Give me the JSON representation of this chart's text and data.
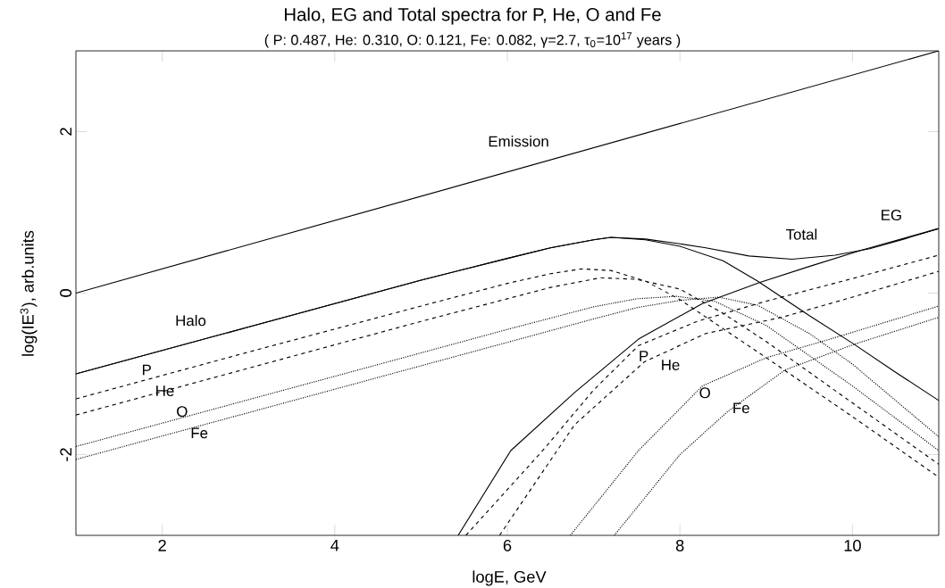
{
  "chart_data": {
    "type": "line",
    "title": "Halo, EG and Total spectra for P,  He, O and Fe",
    "subtitle": "( P: 0.487, He: 0.310, O: 0.121, Fe: 0.082, γ=2.7, τ$_{0}$=10$^{17}$ years )",
    "xlabel": "logE, GeV",
    "ylabel": "log(IE$^{3}$), arb.units",
    "xlim": [
      1,
      11
    ],
    "ylim": [
      -3,
      3
    ],
    "xticks": [
      2,
      4,
      6,
      8,
      10
    ],
    "yticks": [
      -2,
      0,
      2
    ],
    "grid": false,
    "series": [
      {
        "name": "Emission",
        "color": "#000000",
        "line_style": "solid",
        "x": [
          1,
          11
        ],
        "values": [
          0,
          3
        ]
      },
      {
        "name": "Halo",
        "color": "#000000",
        "line_style": "solid",
        "x": [
          1,
          3,
          5,
          6,
          6.5,
          7,
          7.2,
          7.6,
          8,
          8.5,
          8.9,
          9.5,
          10,
          10.5,
          11
        ],
        "values": [
          -1.0,
          -0.42,
          0.16,
          0.43,
          0.56,
          0.66,
          0.69,
          0.66,
          0.58,
          0.4,
          0.15,
          -0.28,
          -0.62,
          -0.98,
          -1.33
        ]
      },
      {
        "name": "Total",
        "color": "#000000",
        "line_style": "solid",
        "x": [
          1,
          3,
          5,
          6,
          6.5,
          7,
          7.2,
          7.6,
          8,
          8.3,
          8.8,
          9.3,
          9.8,
          10.2,
          10.6,
          11
        ],
        "values": [
          -1.0,
          -0.42,
          0.16,
          0.43,
          0.56,
          0.66,
          0.69,
          0.67,
          0.61,
          0.56,
          0.46,
          0.42,
          0.47,
          0.55,
          0.67,
          0.8
        ]
      },
      {
        "name": "EG",
        "color": "#000000",
        "line_style": "solid",
        "x": [
          5.43,
          6.04,
          6.78,
          7.52,
          8.26,
          8.92,
          9.5,
          10.1,
          11
        ],
        "values": [
          -3,
          -1.95,
          -1.23,
          -0.57,
          -0.13,
          0.13,
          0.33,
          0.53,
          0.8
        ]
      },
      {
        "name": "P",
        "color": "#000000",
        "line_style": "dashed",
        "x": [
          1,
          3,
          5,
          6,
          6.5,
          6.86,
          7.2,
          7.6,
          8,
          9,
          10,
          11
        ],
        "values": [
          -1.31,
          -0.73,
          -0.16,
          0.12,
          0.24,
          0.3,
          0.28,
          0.15,
          -0.08,
          -0.8,
          -1.53,
          -2.28
        ]
      },
      {
        "name": "He",
        "color": "#000000",
        "line_style": "dashed",
        "x": [
          1,
          3,
          5,
          6,
          6.5,
          7.08,
          7.5,
          8,
          8.5,
          9,
          10,
          11
        ],
        "values": [
          -1.51,
          -0.93,
          -0.35,
          -0.07,
          0.07,
          0.19,
          0.17,
          0.05,
          -0.25,
          -0.6,
          -1.36,
          -2.12
        ]
      },
      {
        "name": "O",
        "color": "#000000",
        "line_style": "dotted",
        "x": [
          1,
          3,
          5,
          6,
          7,
          7.5,
          7.96,
          8.4,
          9,
          10,
          11
        ],
        "values": [
          -1.9,
          -1.32,
          -0.74,
          -0.45,
          -0.17,
          -0.07,
          -0.04,
          -0.1,
          -0.4,
          -1.15,
          -1.95
        ]
      },
      {
        "name": "Fe",
        "color": "#000000",
        "line_style": "dotted",
        "x": [
          1,
          3,
          5,
          6,
          7,
          7.5,
          8,
          8.45,
          8.9,
          9.5,
          10,
          11
        ],
        "values": [
          -2.06,
          -1.48,
          -0.9,
          -0.61,
          -0.32,
          -0.18,
          -0.09,
          -0.05,
          -0.15,
          -0.5,
          -0.88,
          -1.78
        ]
      },
      {
        "name": "P",
        "color": "#000000",
        "line_style": "dashed",
        "x": [
          5.52,
          6.41,
          7,
          7.52,
          8.2,
          9,
          10,
          11
        ],
        "values": [
          -3,
          -1.95,
          -1.2,
          -0.65,
          -0.35,
          -0.1,
          0.18,
          0.47
        ]
      },
      {
        "name": "He",
        "color": "#000000",
        "line_style": "dashed",
        "x": [
          5.91,
          6.78,
          7.59,
          8.3,
          9.18,
          10,
          11
        ],
        "values": [
          -3,
          -1.63,
          -0.85,
          -0.5,
          -0.3,
          -0.05,
          0.27
        ]
      },
      {
        "name": "O",
        "color": "#000000",
        "line_style": "dotted",
        "x": [
          6.73,
          7.52,
          8.26,
          9,
          9.74,
          11
        ],
        "values": [
          -3,
          -1.95,
          -1.15,
          -0.8,
          -0.57,
          -0.16
        ]
      },
      {
        "name": "Fe",
        "color": "#000000",
        "line_style": "dotted",
        "x": [
          7.24,
          8,
          8.55,
          9.22,
          10.03,
          11
        ],
        "values": [
          -3,
          -2,
          -1.47,
          -0.95,
          -0.63,
          -0.3
        ]
      }
    ]
  }
}
